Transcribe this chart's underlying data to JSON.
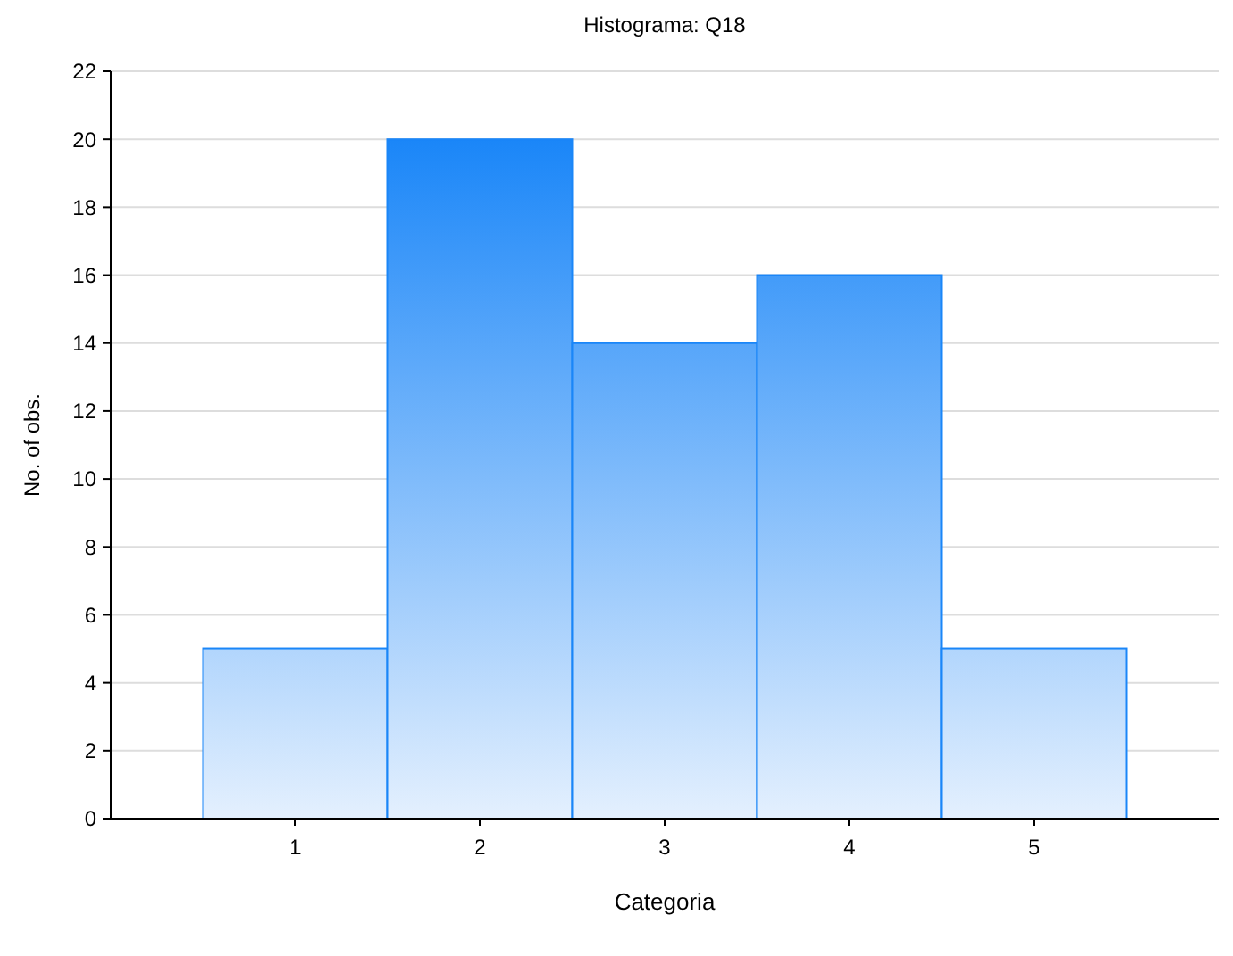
{
  "chart_data": {
    "type": "histogram",
    "title": "Histograma: Q18",
    "xlabel": "Categoria",
    "ylabel": "No. of obs.",
    "bins": [
      0.5,
      1.5,
      2.5,
      3.5,
      4.5,
      5.5
    ],
    "values": [
      5,
      20,
      14,
      16,
      5
    ],
    "color": "#1a86f8",
    "xlim": [
      0,
      6
    ],
    "xticks": [
      1,
      2,
      3,
      4,
      5
    ],
    "ylim": [
      0,
      22
    ],
    "yticks": [
      0,
      2,
      4,
      6,
      8,
      10,
      12,
      14,
      16,
      18,
      20,
      22
    ],
    "grid": "y"
  }
}
